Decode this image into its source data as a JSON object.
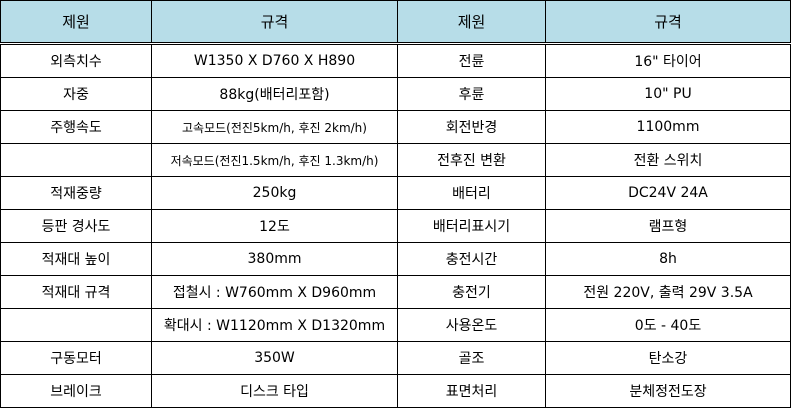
{
  "header": [
    "제원",
    "규격",
    "제원",
    "규격"
  ],
  "header_bg": "#b7dde8",
  "rows": [
    [
      "외측치수",
      "W1350 X D760 X H890",
      "전륜",
      "16\" 타이어"
    ],
    [
      "자중",
      "88kg(배터리포함)",
      "후륜",
      "10\" PU"
    ],
    [
      "주행속도",
      "고속모드(전진5km/h, 후진 2km/h)",
      "회전반경",
      "1100mm"
    ],
    [
      "",
      "저속모드(전진1.5km/h, 후진 1.3km/h)",
      "전후진 변환",
      "전환 스위치"
    ],
    [
      "적재중량",
      "250kg",
      "배터리",
      "DC24V 24A"
    ],
    [
      "등판 경사도",
      "12도",
      "배터리표시기",
      "램프형"
    ],
    [
      "적재대 높이",
      "380mm",
      "충전시간",
      "8h"
    ],
    [
      "적재대 규격",
      "접철시 : W760mm X D960mm",
      "충전기",
      "전원 220V, 출력 29V 3.5A"
    ],
    [
      "",
      "확대시 : W1120mm X D1320mm",
      "사용온도",
      "0도 - 40도"
    ],
    [
      "구동모터",
      "350W",
      "골조",
      "탄소강"
    ],
    [
      "브레이크",
      "디스크 타입",
      "표면처리",
      "분체정전도장"
    ]
  ]
}
